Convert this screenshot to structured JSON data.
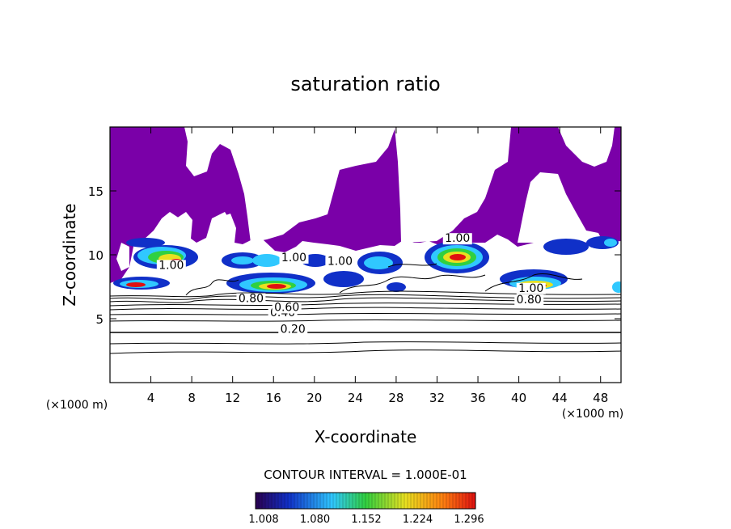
{
  "chart_data": {
    "type": "heatmap",
    "title": "saturation ratio",
    "xlabel": "X-coordinate",
    "ylabel": "Z-coordinate",
    "x_unit": "(×1000 m)",
    "y_unit": "(×1000 m)",
    "xlim": [
      0,
      50
    ],
    "ylim": [
      0,
      20
    ],
    "x_ticks": [
      4,
      8,
      12,
      16,
      20,
      24,
      28,
      32,
      36,
      40,
      44,
      48
    ],
    "y_ticks": [
      5,
      10,
      15
    ],
    "contour_interval_label": "CONTOUR INTERVAL = 1.000E-01",
    "colorbar": {
      "ticks": [
        "1.008",
        "1.080",
        "1.152",
        "1.224",
        "1.296"
      ],
      "colors": [
        "#2a0050",
        "#1030c8",
        "#30c8ff",
        "#30d040",
        "#e8e020",
        "#ff8010",
        "#e01010"
      ]
    },
    "saturated_color": "#7a00a8",
    "contour_labels": [
      {
        "text": "0.20",
        "x": 17.9,
        "y": 3.9
      },
      {
        "text": "0.40",
        "x": 16.9,
        "y": 5.2
      },
      {
        "text": "0.60",
        "x": 17.3,
        "y": 5.6
      },
      {
        "text": "0.80",
        "x": 13.8,
        "y": 6.3
      },
      {
        "text": "0.80",
        "x": 41.0,
        "y": 6.2
      },
      {
        "text": "1.00",
        "x": 6.0,
        "y": 8.9
      },
      {
        "text": "1.00",
        "x": 18.0,
        "y": 9.5
      },
      {
        "text": "1.00",
        "x": 22.5,
        "y": 9.2
      },
      {
        "text": "1.00",
        "x": 34.0,
        "y": 11.0
      },
      {
        "text": "1.00",
        "x": 41.2,
        "y": 7.1
      }
    ]
  }
}
